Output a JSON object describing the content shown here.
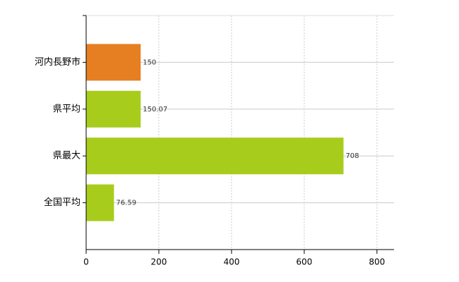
{
  "chart_data": {
    "type": "bar",
    "orientation": "horizontal",
    "categories": [
      "河内長野市",
      "県平均",
      "県最大",
      "全国平均"
    ],
    "values": [
      150,
      150.07,
      708,
      76.59
    ],
    "colors": [
      "#e67e22",
      "#a8cc1c",
      "#a8cc1c",
      "#a8cc1c"
    ],
    "xlim": [
      0,
      847
    ],
    "xticks": [
      0,
      200,
      400,
      600,
      800
    ],
    "grid": true
  }
}
